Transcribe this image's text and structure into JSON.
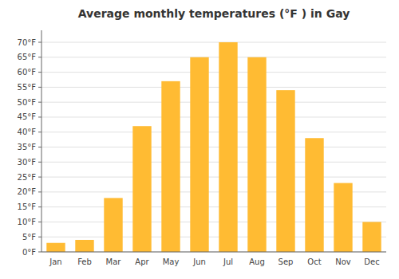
{
  "chart_data": {
    "type": "bar",
    "title": "Average monthly temperatures (°F ) in Gay",
    "categories": [
      "Jan",
      "Feb",
      "Mar",
      "Apr",
      "May",
      "Jun",
      "Jul",
      "Aug",
      "Sep",
      "Oct",
      "Nov",
      "Dec"
    ],
    "values": [
      3,
      4,
      18,
      42,
      57,
      65,
      70,
      65,
      54,
      38,
      23,
      10
    ],
    "color": "#FFBB33",
    "ylim": [
      0,
      74
    ],
    "yticks": [
      {
        "value": 0,
        "label": "0°F"
      },
      {
        "value": 5,
        "label": "5°F"
      },
      {
        "value": 10,
        "label": "10°F"
      },
      {
        "value": 15,
        "label": "15°F"
      },
      {
        "value": 20,
        "label": "20°F"
      },
      {
        "value": 25,
        "label": "25°F"
      },
      {
        "value": 30,
        "label": "30°F"
      },
      {
        "value": 35,
        "label": "35°F"
      },
      {
        "value": 40,
        "label": "40°F"
      },
      {
        "value": 45,
        "label": "45°F"
      },
      {
        "value": 50,
        "label": "50°F"
      },
      {
        "value": 55,
        "label": "55°F"
      },
      {
        "value": 60,
        "label": "60°F"
      },
      {
        "value": 65,
        "label": "65°F"
      },
      {
        "value": 70,
        "label": "70°F"
      }
    ],
    "grid": true
  }
}
